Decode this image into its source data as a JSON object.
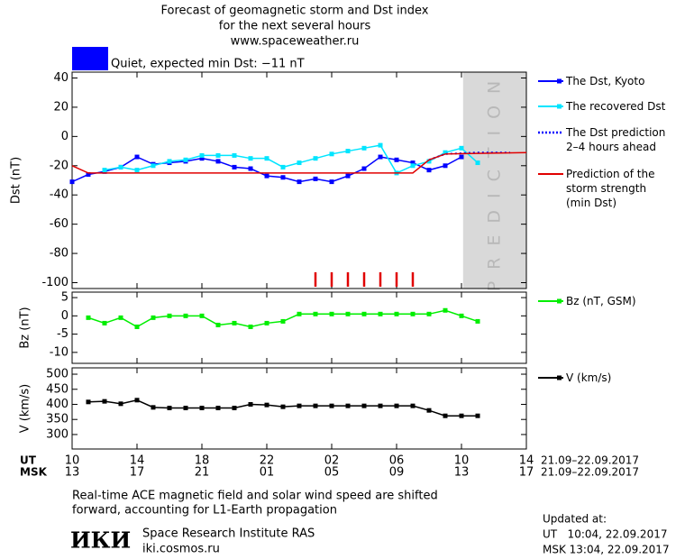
{
  "title": [
    "Forecast of geomagnetic storm and Dst index",
    "for the next several hours",
    "www.spaceweather.ru"
  ],
  "status": {
    "text": "Quiet, expected min Dst: −11 nT",
    "color": "#0000ff"
  },
  "chart_data": [
    {
      "type": "line",
      "ylabel": "Dst (nT)",
      "xlim": [
        0,
        28
      ],
      "ylim": [
        -104,
        44
      ],
      "yticks": [
        40,
        20,
        0,
        -20,
        -40,
        -60,
        -80,
        -100
      ],
      "grid": false,
      "prediction_start": 24.1,
      "prediction_label": "PREDICTION",
      "prediction_color": "#d9d9d9",
      "red_ticks_x": [
        15,
        16,
        17,
        18,
        19,
        20,
        21
      ],
      "red_ticks_color": "#e00000",
      "series": [
        {
          "name": "The Dst, Kyoto",
          "color": "#0000ff",
          "marker": true,
          "dash": false,
          "x": [
            0,
            1,
            2,
            3,
            4,
            5,
            6,
            7,
            8,
            9,
            10,
            11,
            12,
            13,
            14,
            15,
            16,
            17,
            18,
            19,
            20,
            21,
            22,
            23,
            24
          ],
          "values": [
            -31,
            -26,
            -24,
            -21,
            -14,
            -19,
            -18,
            -17,
            -15,
            -17,
            -21,
            -22,
            -27,
            -28,
            -31,
            -29,
            -31,
            -27,
            -22,
            -14,
            -16,
            -18,
            -23,
            -20,
            -14
          ]
        },
        {
          "name": "The recovered Dst",
          "color": "#00e5ff",
          "marker": true,
          "dash": false,
          "x": [
            2,
            3,
            4,
            5,
            6,
            7,
            8,
            9,
            10,
            11,
            12,
            13,
            14,
            15,
            16,
            17,
            18,
            19,
            20,
            21,
            22,
            23,
            24,
            25
          ],
          "values": [
            -23,
            -21,
            -23,
            -20,
            -17,
            -16,
            -13,
            -13,
            -13,
            -15,
            -15,
            -21,
            -18,
            -15,
            -12,
            -10,
            -8,
            -6,
            -25,
            -20,
            -17,
            -11,
            -8,
            -18
          ]
        },
        {
          "name": "The Dst prediction\n2–4 hours ahead",
          "color": "#0000ff",
          "marker": false,
          "dash": true,
          "x": [
            22,
            23,
            25,
            27
          ],
          "values": [
            -16,
            -12,
            -11,
            -11
          ]
        },
        {
          "name": "Prediction of the\nstorm strength\n(min Dst)",
          "color": "#e00000",
          "marker": false,
          "dash": false,
          "x": [
            0,
            1,
            21,
            22,
            23,
            28
          ],
          "values": [
            -20,
            -25,
            -25,
            -16,
            -12,
            -11
          ]
        }
      ]
    },
    {
      "type": "line",
      "ylabel": "Bz (nT)",
      "xlim": [
        0,
        28
      ],
      "ylim": [
        -13,
        6.5
      ],
      "yticks": [
        5,
        0,
        -5,
        -10
      ],
      "grid": false,
      "series": [
        {
          "name": "Bz (nT, GSM)",
          "color": "#00ee00",
          "marker": true,
          "dash": false,
          "x": [
            1,
            2,
            3,
            4,
            5,
            6,
            7,
            8,
            9,
            10,
            11,
            12,
            13,
            14,
            15,
            16,
            17,
            18,
            19,
            20,
            21,
            22,
            23,
            24,
            25
          ],
          "values": [
            -0.5,
            -2,
            -0.5,
            -3,
            -0.5,
            0,
            0,
            0,
            -2.5,
            -2,
            -3,
            -2,
            -1.5,
            0.5,
            0.5,
            0.5,
            0.5,
            0.5,
            0.5,
            0.5,
            0.5,
            0.5,
            1.5,
            0,
            -1.5
          ]
        }
      ]
    },
    {
      "type": "line",
      "ylabel": "V (km/s)",
      "xlim": [
        0,
        28
      ],
      "ylim": [
        252,
        521
      ],
      "yticks": [
        500,
        450,
        400,
        350,
        300
      ],
      "grid": false,
      "series": [
        {
          "name": "V (km/s)",
          "color": "#000000",
          "marker": true,
          "dash": false,
          "x": [
            1,
            2,
            3,
            4,
            5,
            6,
            7,
            8,
            9,
            10,
            11,
            12,
            13,
            14,
            15,
            16,
            17,
            18,
            19,
            20,
            21,
            22,
            23,
            24,
            25
          ],
          "values": [
            408,
            410,
            402,
            414,
            390,
            388,
            388,
            388,
            388,
            388,
            400,
            398,
            392,
            395,
            395,
            395,
            395,
            395,
            395,
            395,
            395,
            380,
            362,
            362,
            362
          ]
        }
      ],
      "x_rows": [
        "UT",
        "MSK"
      ],
      "xticks": [
        {
          "value": 0,
          "label": "10"
        },
        {
          "value": 4,
          "label": "14"
        },
        {
          "value": 8,
          "label": "18"
        },
        {
          "value": 12,
          "label": "22"
        },
        {
          "value": 16,
          "label": "02"
        },
        {
          "value": 20,
          "label": "06"
        },
        {
          "value": 24,
          "label": "10"
        },
        {
          "value": 28,
          "label": "14"
        }
      ],
      "xticks_msk": [
        {
          "value": 0,
          "label": "13"
        },
        {
          "value": 4,
          "label": "17"
        },
        {
          "value": 8,
          "label": "21"
        },
        {
          "value": 12,
          "label": "01"
        },
        {
          "value": 16,
          "label": "05"
        },
        {
          "value": 20,
          "label": "09"
        },
        {
          "value": 24,
          "label": "13"
        },
        {
          "value": 28,
          "label": "17"
        }
      ],
      "date_range": [
        "21.09–22.09.2017",
        "21.09–22.09.2017"
      ]
    }
  ],
  "footer": {
    "note": [
      "Real-time ACE magnetic field and solar wind speed are shifted",
      "forward, accounting for L1-Earth propagation"
    ],
    "logo": "ИКИ",
    "institute": "Space Research Institute RAS",
    "url": "iki.cosmos.ru",
    "updated": [
      "Updated at:",
      "UT   10:04, 22.09.2017",
      "MSK 13:04, 22.09.2017"
    ]
  }
}
